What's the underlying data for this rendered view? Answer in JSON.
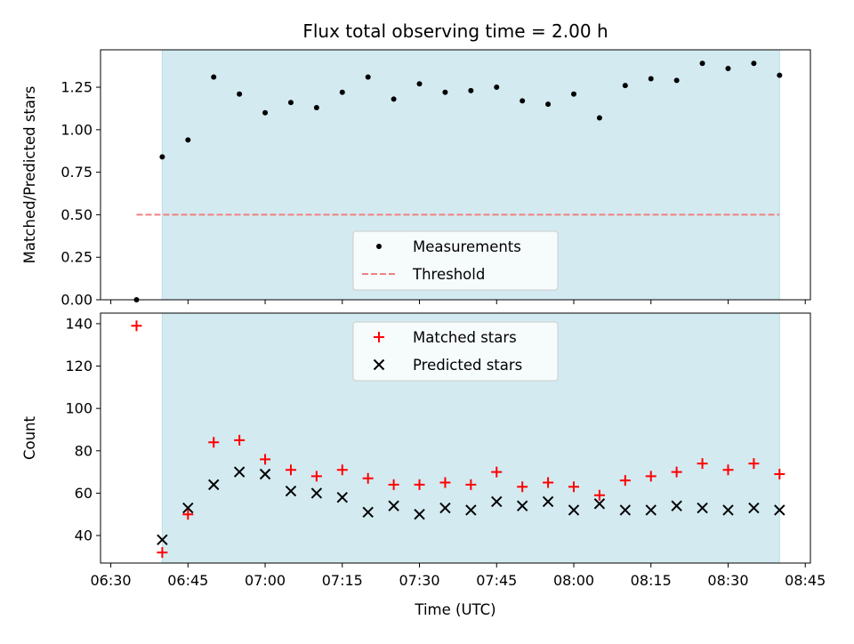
{
  "title": "Flux total observing time = 2.00 h",
  "x_label": "Time (UTC)",
  "x_ticks": [
    "06:30",
    "06:45",
    "07:00",
    "07:15",
    "07:30",
    "07:45",
    "08:00",
    "08:15",
    "08:30",
    "08:45"
  ],
  "colors": {
    "shade": "#d3eaf1",
    "measurement": "#000000",
    "threshold": "#f08080",
    "matched": "#ff0000",
    "predicted": "#000000"
  },
  "chart_data": [
    {
      "type": "scatter",
      "panel": "top",
      "ylabel": "Matched/Predicted stars",
      "xlim": [
        "06:28",
        "08:46"
      ],
      "ylim": [
        0,
        1.47
      ],
      "y_ticks": [
        "0.00",
        "0.25",
        "0.50",
        "0.75",
        "1.00",
        "1.25"
      ],
      "grid": false,
      "legend_position": "lower center",
      "shaded_span": [
        "06:40",
        "08:40"
      ],
      "series": [
        {
          "name": "Measurements",
          "marker": "dot",
          "x": [
            "06:35",
            "06:40",
            "06:45",
            "06:50",
            "06:55",
            "07:00",
            "07:05",
            "07:10",
            "07:15",
            "07:20",
            "07:25",
            "07:30",
            "07:35",
            "07:40",
            "07:45",
            "07:50",
            "07:55",
            "08:00",
            "08:05",
            "08:10",
            "08:15",
            "08:20",
            "08:25",
            "08:30",
            "08:35",
            "08:40"
          ],
          "y": [
            0.0,
            0.84,
            0.94,
            1.31,
            1.21,
            1.1,
            1.16,
            1.13,
            1.22,
            1.31,
            1.18,
            1.27,
            1.22,
            1.23,
            1.25,
            1.17,
            1.15,
            1.21,
            1.07,
            1.26,
            1.3,
            1.29,
            1.39,
            1.36,
            1.39,
            1.32
          ]
        },
        {
          "name": "Threshold",
          "marker": "dashed-line",
          "x": [
            "06:35",
            "08:40"
          ],
          "y": [
            0.5,
            0.5
          ]
        }
      ]
    },
    {
      "type": "scatter",
      "panel": "bottom",
      "ylabel": "Count",
      "xlim": [
        "06:28",
        "08:46"
      ],
      "ylim": [
        27,
        145
      ],
      "y_ticks": [
        "40",
        "60",
        "80",
        "100",
        "120",
        "140"
      ],
      "grid": false,
      "legend_position": "upper center",
      "shaded_span": [
        "06:40",
        "08:40"
      ],
      "series": [
        {
          "name": "Matched stars",
          "marker": "plus",
          "x": [
            "06:35",
            "06:40",
            "06:45",
            "06:50",
            "06:55",
            "07:00",
            "07:05",
            "07:10",
            "07:15",
            "07:20",
            "07:25",
            "07:30",
            "07:35",
            "07:40",
            "07:45",
            "07:50",
            "07:55",
            "08:00",
            "08:05",
            "08:10",
            "08:15",
            "08:20",
            "08:25",
            "08:30",
            "08:35",
            "08:40"
          ],
          "y": [
            139,
            32,
            50,
            84,
            85,
            76,
            71,
            68,
            71,
            67,
            64,
            64,
            65,
            64,
            70,
            63,
            65,
            63,
            59,
            66,
            68,
            70,
            74,
            71,
            74,
            69
          ]
        },
        {
          "name": "Predicted stars",
          "marker": "x",
          "x": [
            "06:40",
            "06:45",
            "06:50",
            "06:55",
            "07:00",
            "07:05",
            "07:10",
            "07:15",
            "07:20",
            "07:25",
            "07:30",
            "07:35",
            "07:40",
            "07:45",
            "07:50",
            "07:55",
            "08:00",
            "08:05",
            "08:10",
            "08:15",
            "08:20",
            "08:25",
            "08:30",
            "08:35",
            "08:40"
          ],
          "y": [
            38,
            53,
            64,
            70,
            69,
            61,
            60,
            58,
            51,
            54,
            50,
            53,
            52,
            56,
            54,
            56,
            52,
            55,
            52,
            52,
            54,
            53,
            52,
            53,
            52
          ]
        }
      ]
    }
  ]
}
